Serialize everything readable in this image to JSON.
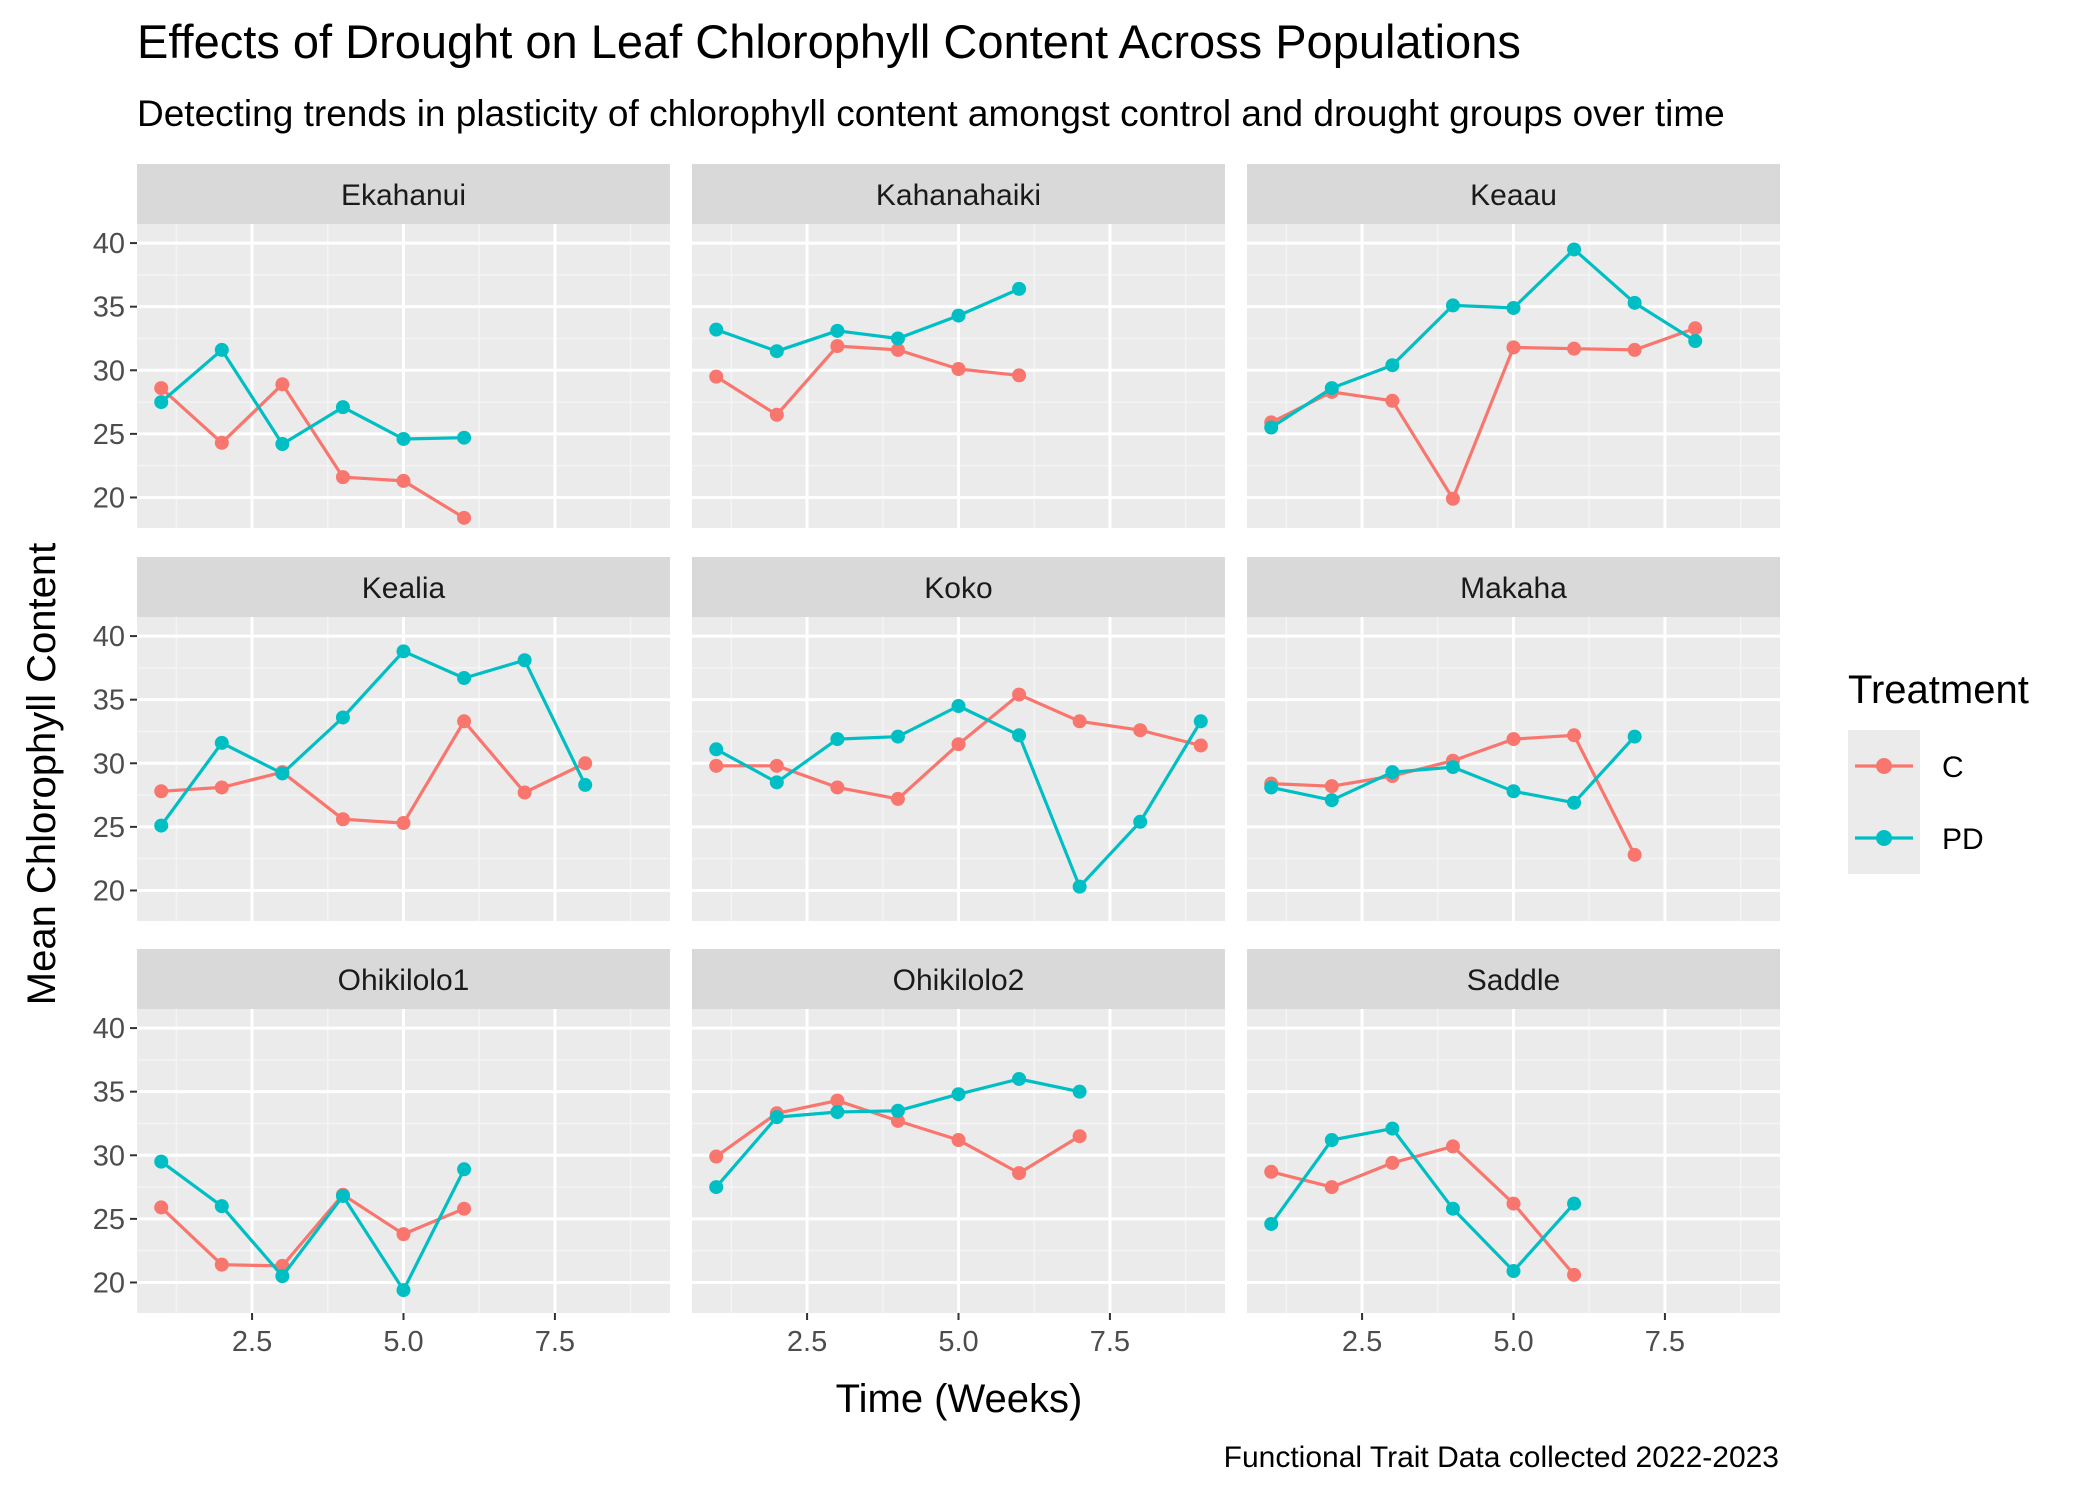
{
  "colors": {
    "C": "#F8766D",
    "PD": "#00BFC4",
    "panel_bg": "#EBEBEB",
    "strip_bg": "#D9D9D9",
    "grid_major": "#FFFFFF",
    "grid_minor": "#F4F4F4",
    "axis_text": "#4D4D4D",
    "strip_text": "#1A1A1A",
    "title_text": "#000000"
  },
  "chart_data": {
    "type": "line",
    "title": "Effects of Drought on Leaf Chlorophyll Content Across Populations",
    "subtitle": "Detecting trends in plasticity of chlorophyll content amongst control and drought groups over time",
    "caption": "Functional Trait Data collected 2022-2023",
    "xlabel": "Time (Weeks)",
    "ylabel": "Mean Chlorophyll Content",
    "xlim": [
      0.6,
      9.4
    ],
    "ylim": [
      17.6,
      41.5
    ],
    "x_ticks": [
      2.5,
      5.0,
      7.5
    ],
    "x_tick_labels": [
      "2.5",
      "5.0",
      "7.5"
    ],
    "y_ticks": [
      20,
      25,
      30,
      35,
      40
    ],
    "y_tick_labels": [
      "20",
      "25",
      "30",
      "35",
      "40"
    ],
    "grid": true,
    "legend": {
      "title": "Treatment",
      "position": "right",
      "entries": [
        "C",
        "PD"
      ]
    },
    "panels": [
      {
        "name": "Ekahanui",
        "series": [
          {
            "name": "C",
            "x": [
              1,
              2,
              3,
              4,
              5,
              6
            ],
            "y": [
              28.6,
              24.3,
              28.9,
              21.6,
              21.3,
              18.4
            ]
          },
          {
            "name": "PD",
            "x": [
              1,
              2,
              3,
              4,
              5,
              6
            ],
            "y": [
              27.5,
              31.6,
              24.2,
              27.1,
              24.6,
              24.7
            ]
          }
        ]
      },
      {
        "name": "Kahanahaiki",
        "series": [
          {
            "name": "C",
            "x": [
              1,
              2,
              3,
              4,
              5,
              6
            ],
            "y": [
              29.5,
              26.5,
              31.9,
              31.6,
              30.1,
              29.6
            ]
          },
          {
            "name": "PD",
            "x": [
              1,
              2,
              3,
              4,
              5,
              6
            ],
            "y": [
              33.2,
              31.5,
              33.1,
              32.5,
              34.3,
              36.4
            ]
          }
        ]
      },
      {
        "name": "Keaau",
        "series": [
          {
            "name": "C",
            "x": [
              1,
              2,
              3,
              4,
              5,
              6,
              7,
              8
            ],
            "y": [
              25.9,
              28.3,
              27.6,
              19.9,
              31.8,
              31.7,
              31.6,
              33.3
            ]
          },
          {
            "name": "PD",
            "x": [
              1,
              2,
              3,
              4,
              5,
              6,
              7,
              8
            ],
            "y": [
              25.5,
              28.6,
              30.4,
              35.1,
              34.9,
              39.5,
              35.3,
              32.3
            ]
          }
        ]
      },
      {
        "name": "Kealia",
        "series": [
          {
            "name": "C",
            "x": [
              1,
              2,
              3,
              4,
              5,
              6,
              7,
              8
            ],
            "y": [
              27.8,
              28.1,
              29.3,
              25.6,
              25.3,
              33.3,
              27.7,
              30.0
            ]
          },
          {
            "name": "PD",
            "x": [
              1,
              2,
              3,
              4,
              5,
              6,
              7,
              8
            ],
            "y": [
              25.1,
              31.6,
              29.2,
              33.6,
              38.8,
              36.7,
              38.1,
              28.3
            ]
          }
        ]
      },
      {
        "name": "Koko",
        "series": [
          {
            "name": "C",
            "x": [
              1,
              2,
              3,
              4,
              5,
              6,
              7,
              8,
              9
            ],
            "y": [
              29.8,
              29.8,
              28.1,
              27.2,
              31.5,
              35.4,
              33.3,
              32.6,
              31.4
            ]
          },
          {
            "name": "PD",
            "x": [
              1,
              2,
              3,
              4,
              5,
              6,
              7,
              8,
              9
            ],
            "y": [
              31.1,
              28.5,
              31.9,
              32.1,
              34.5,
              32.2,
              20.3,
              25.4,
              33.3
            ]
          }
        ]
      },
      {
        "name": "Makaha",
        "series": [
          {
            "name": "C",
            "x": [
              1,
              2,
              3,
              4,
              5,
              6,
              7
            ],
            "y": [
              28.4,
              28.2,
              29.0,
              30.2,
              31.9,
              32.2,
              22.8
            ]
          },
          {
            "name": "PD",
            "x": [
              1,
              2,
              3,
              4,
              5,
              6,
              7
            ],
            "y": [
              28.1,
              27.1,
              29.3,
              29.7,
              27.8,
              26.9,
              32.1
            ]
          }
        ]
      },
      {
        "name": "Ohikilolo1",
        "series": [
          {
            "name": "C",
            "x": [
              1,
              2,
              3,
              4,
              5,
              6
            ],
            "y": [
              25.9,
              21.4,
              21.3,
              26.9,
              23.8,
              25.8
            ]
          },
          {
            "name": "PD",
            "x": [
              1,
              2,
              3,
              4,
              5,
              6
            ],
            "y": [
              29.5,
              26.0,
              20.5,
              26.8,
              19.4,
              28.9
            ]
          }
        ]
      },
      {
        "name": "Ohikilolo2",
        "series": [
          {
            "name": "C",
            "x": [
              1,
              2,
              3,
              4,
              5,
              6,
              7
            ],
            "y": [
              29.9,
              33.3,
              34.3,
              32.7,
              31.2,
              28.6,
              31.5
            ]
          },
          {
            "name": "PD",
            "x": [
              1,
              2,
              3,
              4,
              5,
              6,
              7
            ],
            "y": [
              27.5,
              33.0,
              33.4,
              33.5,
              34.8,
              36.0,
              35.0
            ]
          }
        ]
      },
      {
        "name": "Saddle",
        "series": [
          {
            "name": "C",
            "x": [
              1,
              2,
              3,
              4,
              5,
              6
            ],
            "y": [
              28.7,
              27.5,
              29.4,
              30.7,
              26.2,
              20.6
            ]
          },
          {
            "name": "PD",
            "x": [
              1,
              2,
              3,
              4,
              5,
              6
            ],
            "y": [
              24.6,
              31.2,
              32.1,
              25.8,
              20.9,
              26.2
            ]
          }
        ]
      }
    ]
  }
}
